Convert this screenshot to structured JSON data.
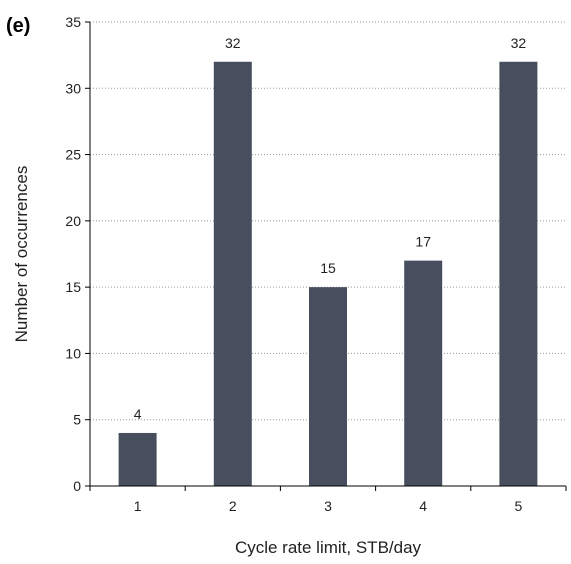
{
  "panel_label": "(e)",
  "chart_data": {
    "type": "bar",
    "categories": [
      "1",
      "2",
      "3",
      "4",
      "5"
    ],
    "values": [
      4,
      32,
      15,
      17,
      32
    ],
    "data_labels": [
      "4",
      "32",
      "15",
      "17",
      "32"
    ],
    "xlabel": "Cycle rate limit, STB/day",
    "ylabel": "Number of occurrences",
    "ylim": [
      0,
      35
    ],
    "yticks": [
      0,
      5,
      10,
      15,
      20,
      25,
      30,
      35
    ],
    "grid": "horizontal dotted",
    "bar_color": "#474f5e"
  }
}
